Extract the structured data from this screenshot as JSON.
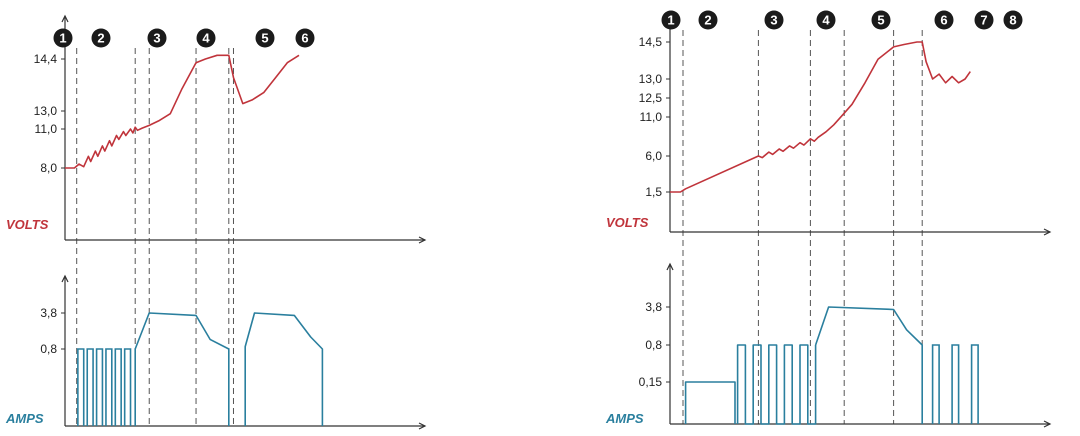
{
  "colors": {
    "volts": "#c0343b",
    "amps": "#2a7f9e",
    "axis": "#333333",
    "marker_fill": "#1b1b1b",
    "divider": "#555555"
  },
  "chart_data": [
    {
      "type": "line",
      "stage_labels": [
        "1",
        "2",
        "3",
        "4",
        "5",
        "6"
      ],
      "stage_boundaries": [
        0.5,
        3,
        3.6,
        5.6,
        7,
        7.2
      ],
      "volts": {
        "ylabel": "VOLTS",
        "yticks": [
          {
            "value": 8.0,
            "label": "8,0"
          },
          {
            "value": 11.0,
            "label": "11,0"
          },
          {
            "value": 13.0,
            "label": "13,0"
          },
          {
            "value": 14.4,
            "label": "14,4"
          }
        ],
        "x": [
          0,
          0.4,
          0.6,
          0.8,
          1.0,
          1.1,
          1.3,
          1.4,
          1.6,
          1.7,
          1.9,
          2.0,
          2.2,
          2.3,
          2.5,
          2.6,
          2.8,
          2.9,
          3.0,
          3.1,
          3.3,
          3.6,
          4.0,
          4.5,
          5.0,
          5.6,
          6.0,
          6.5,
          7.0,
          7.2,
          7.6,
          8.0,
          8.5,
          9.0,
          9.5,
          10.0
        ],
        "y": [
          8.0,
          8.0,
          8.3,
          8.1,
          8.9,
          8.5,
          9.3,
          8.9,
          9.7,
          9.3,
          10.1,
          9.7,
          10.5,
          10.2,
          10.8,
          10.5,
          11.0,
          10.7,
          11.2,
          10.9,
          11.1,
          11.4,
          11.9,
          12.7,
          13.6,
          14.3,
          14.4,
          14.5,
          14.5,
          13.9,
          13.2,
          13.3,
          13.5,
          13.9,
          14.3,
          14.5
        ]
      },
      "amps": {
        "ylabel": "AMPS",
        "yticks": [
          {
            "value": 0.8,
            "label": "0,8"
          },
          {
            "value": 3.8,
            "label": "3,8"
          }
        ],
        "pulses": {
          "value": 0.8,
          "ranges": [
            [
              0.55,
              0.8
            ],
            [
              0.95,
              1.2
            ],
            [
              1.35,
              1.6
            ],
            [
              1.75,
              2.0
            ],
            [
              2.15,
              2.4
            ],
            [
              2.55,
              2.8
            ]
          ]
        },
        "segments": [
          {
            "x": [
              3.0,
              3.0,
              3.6,
              5.6,
              6.2,
              7.0,
              7.0
            ],
            "y": [
              0,
              0.8,
              3.8,
              3.6,
              1.6,
              0.8,
              0
            ]
          },
          {
            "x": [
              7.7,
              7.7,
              8.1,
              9.8,
              10.5,
              11.0,
              11.0
            ],
            "y": [
              0,
              1.0,
              3.8,
              3.6,
              1.8,
              0.8,
              0
            ]
          }
        ]
      }
    },
    {
      "type": "line",
      "stage_labels": [
        "1",
        "2",
        "3",
        "4",
        "5",
        "6",
        "7",
        "8"
      ],
      "stage_boundaries": [
        0.5,
        3.4,
        5.4,
        6.7,
        8.6,
        9.7
      ],
      "volts": {
        "ylabel": "VOLTS",
        "yticks": [
          {
            "value": 1.5,
            "label": "1,5"
          },
          {
            "value": 6.0,
            "label": "6,0"
          },
          {
            "value": 11.0,
            "label": "11,0"
          },
          {
            "value": 12.5,
            "label": "12,5"
          },
          {
            "value": 13.0,
            "label": "13,0"
          },
          {
            "value": 14.5,
            "label": "14,5"
          }
        ],
        "x": [
          0,
          0.4,
          0.6,
          3.4,
          3.55,
          3.8,
          3.95,
          4.2,
          4.35,
          4.6,
          4.75,
          5.0,
          5.15,
          5.4,
          5.55,
          5.7,
          6.0,
          6.3,
          6.7,
          7.0,
          7.5,
          8.0,
          8.6,
          9.0,
          9.5,
          9.7,
          9.85,
          10.1,
          10.35,
          10.6,
          10.85,
          11.1,
          11.35,
          11.55
        ],
        "y": [
          1.5,
          1.5,
          1.9,
          6.0,
          5.8,
          6.5,
          6.2,
          6.9,
          6.6,
          7.3,
          7.0,
          7.7,
          7.4,
          8.2,
          7.9,
          8.4,
          9.1,
          10.0,
          11.3,
          12.0,
          12.9,
          13.8,
          14.3,
          14.4,
          14.5,
          14.5,
          13.7,
          13.0,
          13.2,
          12.9,
          13.1,
          12.9,
          13.0,
          13.3
        ]
      },
      "amps": {
        "ylabel": "AMPS",
        "yticks": [
          {
            "value": 0.15,
            "label": "0,15"
          },
          {
            "value": 0.8,
            "label": "0,8"
          },
          {
            "value": 3.8,
            "label": "3,8"
          }
        ],
        "pulses": {
          "value": 0.8,
          "ranges": [
            [
              10.1,
              10.35
            ],
            [
              10.85,
              11.1
            ],
            [
              11.6,
              11.85
            ]
          ]
        },
        "segments": [
          {
            "x": [
              0.6,
              0.6,
              2.5,
              2.5
            ],
            "y": [
              0,
              0.15,
              0.15,
              0
            ]
          },
          {
            "x": [
              2.6,
              2.6,
              2.9,
              2.9,
              3.2,
              3.2,
              3.5,
              3.5,
              3.8,
              3.8,
              4.1,
              4.1,
              4.4,
              4.4,
              4.7,
              4.7,
              5.0,
              5.0,
              5.3,
              5.3,
              5.6,
              5.6
            ],
            "y": [
              0,
              0.8,
              0.8,
              0,
              0,
              0.8,
              0.8,
              0,
              0,
              0.8,
              0.8,
              0,
              0,
              0.8,
              0.8,
              0,
              0,
              0.8,
              0.8,
              0,
              0,
              0.8
            ]
          },
          {
            "x": [
              5.6,
              6.1,
              8.6,
              9.1,
              9.7,
              9.7
            ],
            "y": [
              0.8,
              3.8,
              3.6,
              2.0,
              0.8,
              0
            ]
          }
        ]
      }
    }
  ]
}
